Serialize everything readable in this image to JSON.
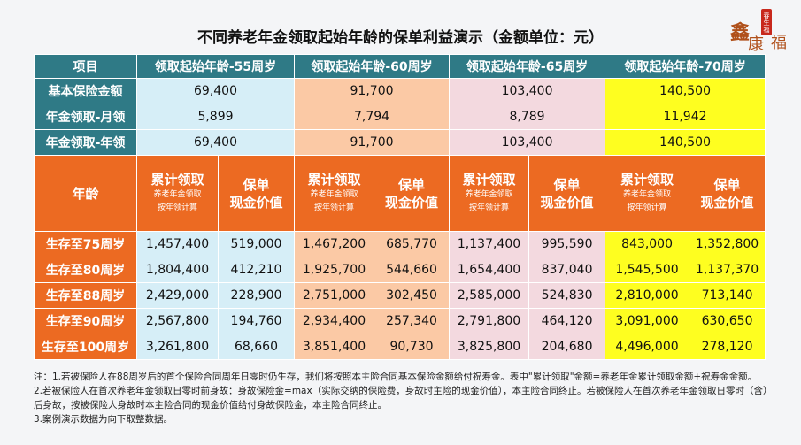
{
  "title": "不同养老年金领取起始年龄的保单利益演示（金额单位：元）",
  "logo": {
    "stamp": "春生福",
    "chars": "鑫康福"
  },
  "header": [
    "项目",
    "领取起始年龄-55周岁",
    "领取起始年龄-60周岁",
    "领取起始年龄-65周岁",
    "领取起始年龄-70周岁"
  ],
  "basic_rows": [
    {
      "label": "基本保险金额",
      "values": [
        "69,400",
        "91,700",
        "103,400",
        "140,500"
      ]
    },
    {
      "label": "年金领取-月领",
      "values": [
        "5,899",
        "7,794",
        "8,789",
        "11,942"
      ]
    },
    {
      "label": "年金领取-年领",
      "values": [
        "69,400",
        "91,700",
        "103,400",
        "140,500"
      ]
    }
  ],
  "sub_header": {
    "age": "年龄",
    "cum_title": "累计领取",
    "cum_note1": "养老年金领取",
    "cum_note2": "按年领计算",
    "cash_line1": "保单",
    "cash_line2": "现金价值"
  },
  "age_rows": [
    {
      "label": "生存至75周岁",
      "values": [
        "1,457,400",
        "519,000",
        "1,467,200",
        "685,770",
        "1,137,400",
        "995,590",
        "843,000",
        "1,352,800"
      ]
    },
    {
      "label": "生存至80周岁",
      "values": [
        "1,804,400",
        "412,210",
        "1,925,700",
        "544,660",
        "1,654,400",
        "837,040",
        "1,545,500",
        "1,137,370"
      ]
    },
    {
      "label": "生存至88周岁",
      "values": [
        "2,429,000",
        "228,900",
        "2,751,000",
        "302,450",
        "2,585,000",
        "524,830",
        "2,810,000",
        "713,140"
      ]
    },
    {
      "label": "生存至90周岁",
      "values": [
        "2,567,800",
        "194,760",
        "2,934,400",
        "257,340",
        "2,791,800",
        "464,120",
        "3,091,000",
        "630,650"
      ]
    },
    {
      "label": "生存至100周岁",
      "values": [
        "3,261,800",
        "68,660",
        "3,851,400",
        "90,730",
        "3,825,800",
        "204,680",
        "4,496,000",
        "278,120"
      ]
    }
  ],
  "notes": [
    "注：1.若被保险人在88周岁后的首个保险合同周年日零时仍生存，我们将按照本主险合同基本保险金额给付祝寿金。表中\"累计领取\"金额=养老年金累计领取金额+祝寿金金额。",
    "2.若被保险人在首次养老年金领取日零时前身故：身故保险金=max（实际交纳的保险费，身故时主险的现金价值），本主险合同终止。若被保险人在首次养老年金领取日零时（含）后身故，按被保险人身故时本主险合同的现金价值给付身故保险金，本主险合同终止。",
    "3.案例演示数据为向下取整数据。"
  ],
  "colors": {
    "header": "#2f7a86",
    "orange": "#ec6a22",
    "age55": "#d6eef7",
    "age60": "#fbc9a5",
    "age65": "#f3d9df",
    "age70": "#fefe20"
  }
}
